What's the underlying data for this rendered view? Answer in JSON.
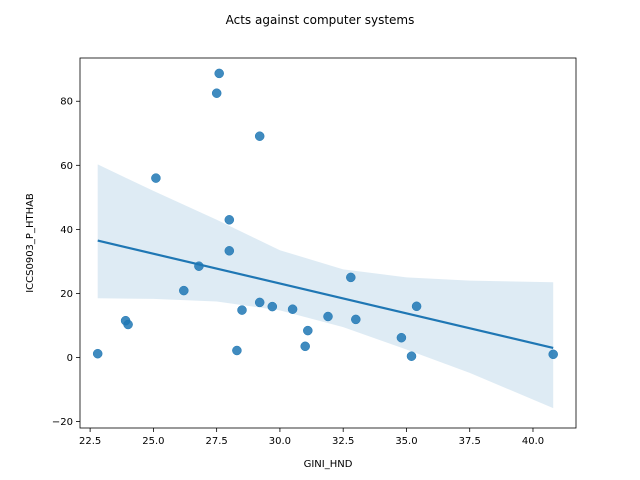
{
  "chart_data": {
    "type": "scatter",
    "title": "Acts against computer systems",
    "xlabel": "GINI_HND",
    "ylabel": "ICCS0903_P_HTHAB",
    "xlim": [
      22.1,
      41.7
    ],
    "ylim": [
      -22.0,
      93.5
    ],
    "x_ticks": [
      "22.5",
      "25.0",
      "27.5",
      "30.0",
      "32.5",
      "35.0",
      "37.5",
      "40.0"
    ],
    "y_ticks": [
      "−20",
      "0",
      "20",
      "40",
      "60",
      "80"
    ],
    "x_tick_values": [
      22.5,
      25.0,
      27.5,
      30.0,
      32.5,
      35.0,
      37.5,
      40.0
    ],
    "y_tick_values": [
      -20,
      0,
      20,
      40,
      60,
      80
    ],
    "grid": false,
    "series": [
      {
        "points": [
          {
            "x": 22.8,
            "y": 1.2
          },
          {
            "x": 23.9,
            "y": 11.5
          },
          {
            "x": 24.0,
            "y": 10.3
          },
          {
            "x": 25.1,
            "y": 56.0
          },
          {
            "x": 26.2,
            "y": 20.9
          },
          {
            "x": 26.8,
            "y": 28.5
          },
          {
            "x": 27.5,
            "y": 82.5
          },
          {
            "x": 27.6,
            "y": 88.7
          },
          {
            "x": 28.0,
            "y": 43.0
          },
          {
            "x": 28.0,
            "y": 33.3
          },
          {
            "x": 28.3,
            "y": 2.2
          },
          {
            "x": 28.5,
            "y": 14.8
          },
          {
            "x": 29.2,
            "y": 69.1
          },
          {
            "x": 29.2,
            "y": 17.2
          },
          {
            "x": 29.7,
            "y": 15.9
          },
          {
            "x": 30.5,
            "y": 15.1
          },
          {
            "x": 31.0,
            "y": 3.5
          },
          {
            "x": 31.1,
            "y": 8.4
          },
          {
            "x": 31.9,
            "y": 12.8
          },
          {
            "x": 32.8,
            "y": 25.0
          },
          {
            "x": 33.0,
            "y": 11.9
          },
          {
            "x": 34.8,
            "y": 6.2
          },
          {
            "x": 35.2,
            "y": 0.4
          },
          {
            "x": 35.4,
            "y": 16.0
          },
          {
            "x": 40.8,
            "y": 1.0
          }
        ],
        "regression": {
          "x": [
            22.8,
            40.8
          ],
          "y": [
            36.5,
            3.0
          ]
        },
        "ci_band": {
          "x": [
            22.8,
            25.0,
            27.5,
            30.0,
            32.5,
            35.0,
            37.5,
            40.8
          ],
          "lower": [
            18.5,
            18.3,
            17.5,
            14.7,
            9.5,
            2.5,
            -4.8,
            -15.8
          ],
          "upper": [
            60.3,
            52.0,
            43.0,
            33.5,
            27.5,
            25.0,
            24.0,
            23.5
          ]
        }
      }
    ],
    "colors": {
      "point": "#1f77b4",
      "line": "#1f77b4",
      "band": "#1f77b4"
    }
  }
}
